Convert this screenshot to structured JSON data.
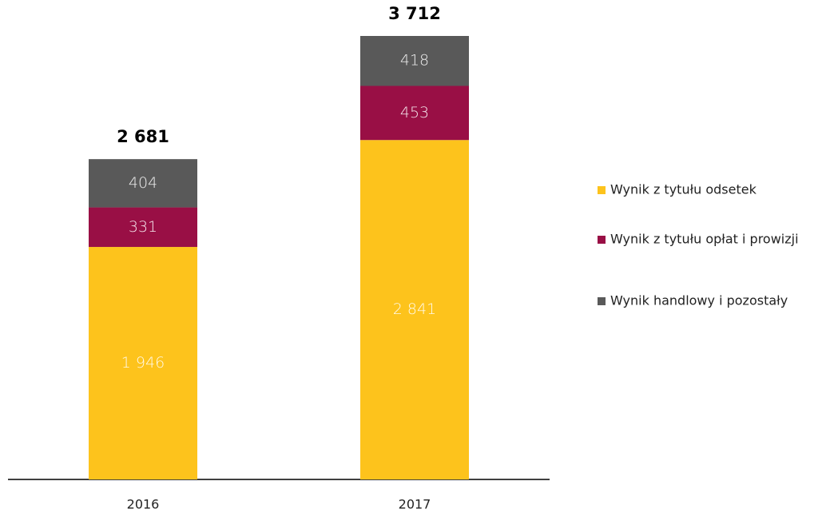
{
  "chart_data": {
    "type": "stacked_bar",
    "categories": [
      "2016",
      "2017"
    ],
    "series": [
      {
        "name": "Wynik z tytułu odsetek",
        "color": "#fdc31c",
        "values": [
          1946,
          2841
        ],
        "value_labels": [
          "1 946",
          "2 841"
        ]
      },
      {
        "name": "Wynik z tytułu opłat i prowizji",
        "color": "#990f45",
        "values": [
          331,
          453
        ],
        "value_labels": [
          "331",
          "453"
        ]
      },
      {
        "name": "Wynik handlowy i pozostały",
        "color": "#595959",
        "values": [
          404,
          418
        ],
        "value_labels": [
          "404",
          "418"
        ]
      }
    ],
    "totals": [
      2681,
      3712
    ],
    "total_labels": [
      "2 681",
      "3 712"
    ],
    "legend": "right"
  }
}
